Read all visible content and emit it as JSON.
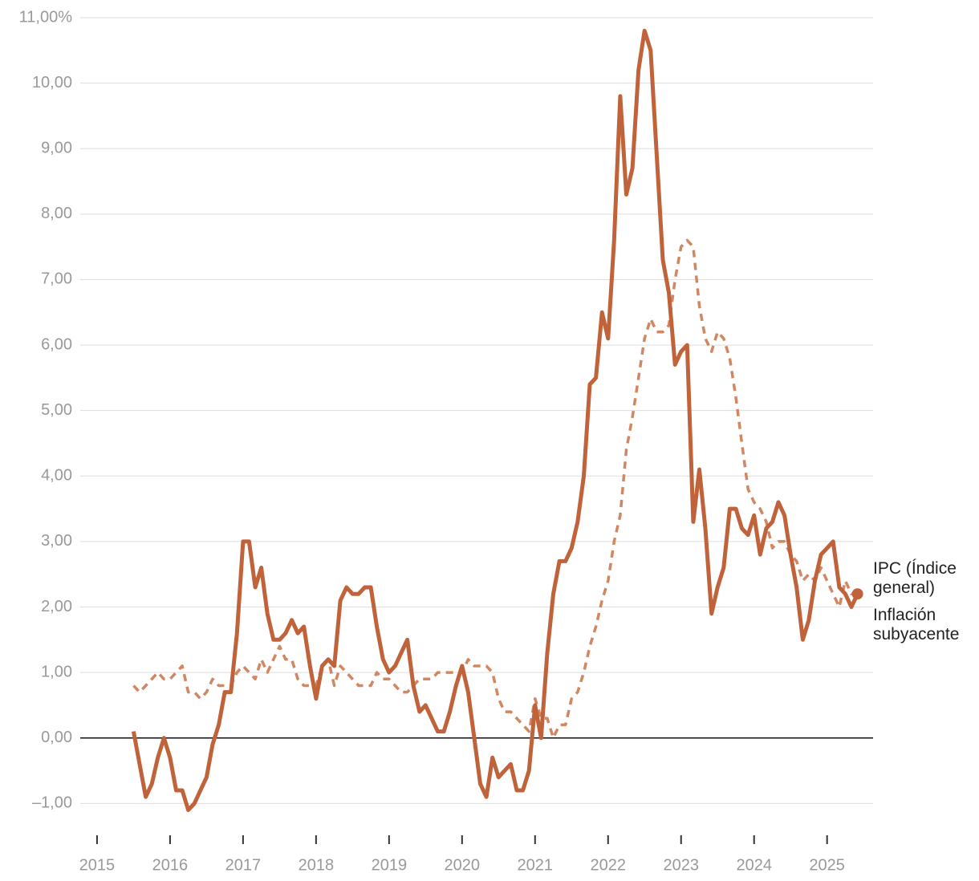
{
  "chart_data": {
    "type": "line",
    "x": [
      2015.5,
      2015.583,
      2015.667,
      2015.75,
      2015.833,
      2015.917,
      2016,
      2016.083,
      2016.167,
      2016.25,
      2016.333,
      2016.417,
      2016.5,
      2016.583,
      2016.667,
      2016.75,
      2016.833,
      2016.917,
      2017,
      2017.083,
      2017.167,
      2017.25,
      2017.333,
      2017.417,
      2017.5,
      2017.583,
      2017.667,
      2017.75,
      2017.833,
      2017.917,
      2018,
      2018.083,
      2018.167,
      2018.25,
      2018.333,
      2018.417,
      2018.5,
      2018.583,
      2018.667,
      2018.75,
      2018.833,
      2018.917,
      2019,
      2019.083,
      2019.167,
      2019.25,
      2019.333,
      2019.417,
      2019.5,
      2019.583,
      2019.667,
      2019.75,
      2019.833,
      2019.917,
      2020,
      2020.083,
      2020.167,
      2020.25,
      2020.333,
      2020.417,
      2020.5,
      2020.583,
      2020.667,
      2020.75,
      2020.833,
      2020.917,
      2021,
      2021.083,
      2021.167,
      2021.25,
      2021.333,
      2021.417,
      2021.5,
      2021.583,
      2021.667,
      2021.75,
      2021.833,
      2021.917,
      2022,
      2022.083,
      2022.167,
      2022.25,
      2022.333,
      2022.417,
      2022.5,
      2022.583,
      2022.667,
      2022.75,
      2022.833,
      2022.917,
      2023,
      2023.083,
      2023.167,
      2023.25,
      2023.333,
      2023.417,
      2023.5,
      2023.583,
      2023.667,
      2023.75,
      2023.833,
      2023.917,
      2024,
      2024.083,
      2024.167,
      2024.25,
      2024.333,
      2024.417,
      2024.5,
      2024.583,
      2024.667,
      2024.75,
      2024.833,
      2024.917,
      2025,
      2025.083,
      2025.167,
      2025.25,
      2025.333,
      2025.417
    ],
    "series": [
      {
        "name": "IPC (Índice general)",
        "color": "#c0623a",
        "dashed": false,
        "values": [
          0.1,
          -0.4,
          -0.9,
          -0.7,
          -0.3,
          0.0,
          -0.3,
          -0.8,
          -0.8,
          -1.1,
          -1.0,
          -0.8,
          -0.6,
          -0.1,
          0.2,
          0.7,
          0.7,
          1.6,
          3.0,
          3.0,
          2.3,
          2.6,
          1.9,
          1.5,
          1.5,
          1.6,
          1.8,
          1.6,
          1.7,
          1.1,
          0.6,
          1.1,
          1.2,
          1.1,
          2.1,
          2.3,
          2.2,
          2.2,
          2.3,
          2.3,
          1.7,
          1.2,
          1.0,
          1.1,
          1.3,
          1.5,
          0.8,
          0.4,
          0.5,
          0.3,
          0.1,
          0.1,
          0.4,
          0.8,
          1.1,
          0.7,
          0.0,
          -0.7,
          -0.9,
          -0.3,
          -0.6,
          -0.5,
          -0.4,
          -0.8,
          -0.8,
          -0.5,
          0.5,
          0.0,
          1.3,
          2.2,
          2.7,
          2.7,
          2.9,
          3.3,
          4.0,
          5.4,
          5.5,
          6.5,
          6.1,
          7.6,
          9.8,
          8.3,
          8.7,
          10.2,
          10.8,
          10.5,
          8.9,
          7.3,
          6.8,
          5.7,
          5.9,
          6.0,
          3.3,
          4.1,
          3.2,
          1.9,
          2.3,
          2.6,
          3.5,
          3.5,
          3.2,
          3.1,
          3.4,
          2.8,
          3.2,
          3.3,
          3.6,
          3.4,
          2.8,
          2.3,
          1.5,
          1.8,
          2.4,
          2.8,
          2.9,
          3.0,
          2.3,
          2.2,
          2.0,
          2.2
        ]
      },
      {
        "name": "Inflación subyacente",
        "color": "#d08762",
        "dashed": true,
        "values": [
          0.8,
          0.7,
          0.8,
          0.9,
          1.0,
          0.9,
          0.9,
          1.0,
          1.1,
          0.7,
          0.7,
          0.6,
          0.7,
          0.9,
          0.8,
          0.8,
          0.8,
          1.0,
          1.1,
          1.0,
          0.9,
          1.2,
          1.0,
          1.2,
          1.4,
          1.2,
          1.2,
          0.9,
          0.8,
          0.8,
          0.8,
          1.1,
          1.2,
          0.8,
          1.1,
          1.0,
          0.9,
          0.8,
          0.8,
          0.8,
          1.0,
          0.9,
          0.9,
          0.8,
          0.7,
          0.7,
          0.8,
          0.9,
          0.9,
          0.9,
          1.0,
          1.0,
          1.0,
          1.0,
          1.0,
          1.2,
          1.1,
          1.1,
          1.1,
          1.0,
          0.6,
          0.4,
          0.4,
          0.3,
          0.2,
          0.1,
          0.6,
          0.3,
          0.3,
          0.0,
          0.2,
          0.2,
          0.6,
          0.7,
          1.0,
          1.4,
          1.7,
          2.1,
          2.4,
          3.0,
          3.4,
          4.4,
          4.9,
          5.5,
          6.1,
          6.4,
          6.2,
          6.2,
          6.3,
          7.0,
          7.5,
          7.6,
          7.5,
          6.6,
          6.1,
          5.9,
          6.2,
          6.1,
          5.8,
          5.2,
          4.5,
          3.8,
          3.6,
          3.5,
          3.3,
          2.9,
          3.0,
          3.0,
          2.8,
          2.7,
          2.4,
          2.5,
          2.4,
          2.6,
          2.4,
          2.2,
          2.0,
          2.4,
          2.2,
          2.2
        ]
      }
    ],
    "xlim": [
      2014.77,
      2025.63
    ],
    "xticks": [
      2015,
      2016,
      2017,
      2018,
      2019,
      2020,
      2021,
      2022,
      2023,
      2024,
      2025
    ],
    "ylim": [
      -1.4,
      11
    ],
    "yticks": [
      {
        "value": -1,
        "label": "–1,00"
      },
      {
        "value": 0,
        "label": "0,00"
      },
      {
        "value": 1,
        "label": "1,00"
      },
      {
        "value": 2,
        "label": "2,00"
      },
      {
        "value": 3,
        "label": "3,00"
      },
      {
        "value": 4,
        "label": "4,00"
      },
      {
        "value": 5,
        "label": "5,00"
      },
      {
        "value": 6,
        "label": "6,00"
      },
      {
        "value": 7,
        "label": "7,00"
      },
      {
        "value": 8,
        "label": "8,00"
      },
      {
        "value": 9,
        "label": "9,00"
      },
      {
        "value": 10,
        "label": "10,00"
      },
      {
        "value": 11,
        "label": "11,00%"
      }
    ],
    "grid": true
  }
}
